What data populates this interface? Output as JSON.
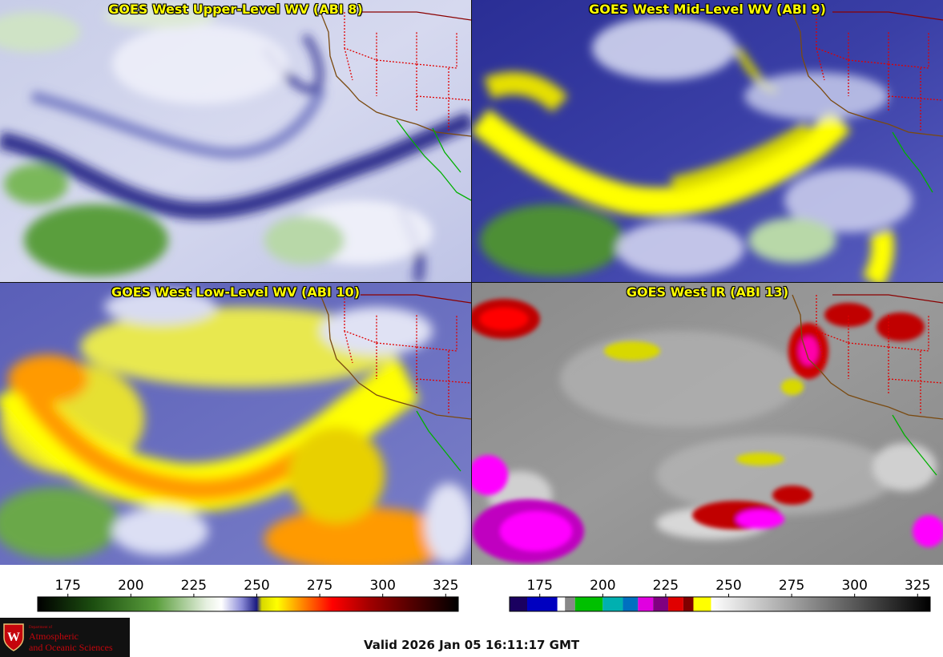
{
  "panels": [
    {
      "id": "ul",
      "title": "GOES West Upper-Level WV (ABI 8)"
    },
    {
      "id": "ml",
      "title": "GOES West Mid-Level WV (ABI 9)"
    },
    {
      "id": "ll",
      "title": "GOES West Low-Level WV (ABI 10)"
    },
    {
      "id": "ir",
      "title": "GOES West IR (ABI 13)"
    }
  ],
  "colorbars": {
    "wv": {
      "ticks": [
        "175",
        "200",
        "225",
        "250",
        "275",
        "300",
        "325"
      ],
      "tick_values": [
        175,
        200,
        225,
        250,
        275,
        300,
        325
      ],
      "range": [
        163,
        330
      ],
      "stops": [
        {
          "v": 163,
          "c": "#000000"
        },
        {
          "v": 185,
          "c": "#1c4e10"
        },
        {
          "v": 210,
          "c": "#5a9e3c"
        },
        {
          "v": 230,
          "c": "#e6f0e0"
        },
        {
          "v": 236,
          "c": "#ffffff"
        },
        {
          "v": 244,
          "c": "#8c8cd8"
        },
        {
          "v": 250,
          "c": "#1a1a80"
        },
        {
          "v": 252,
          "c": "#d8d800"
        },
        {
          "v": 258,
          "c": "#ffff00"
        },
        {
          "v": 268,
          "c": "#ff8800"
        },
        {
          "v": 280,
          "c": "#ff0000"
        },
        {
          "v": 295,
          "c": "#a00000"
        },
        {
          "v": 312,
          "c": "#500000"
        },
        {
          "v": 330,
          "c": "#000000"
        }
      ]
    },
    "ir": {
      "ticks": [
        "175",
        "200",
        "225",
        "250",
        "275",
        "300",
        "325"
      ],
      "tick_values": [
        175,
        200,
        225,
        250,
        275,
        300,
        325
      ],
      "range": [
        163,
        330
      ],
      "segments": [
        {
          "from": 163,
          "to": 170,
          "c": "#1a0060"
        },
        {
          "from": 170,
          "to": 182,
          "c": "#0000c0"
        },
        {
          "from": 182,
          "to": 185,
          "c": "#ffffff"
        },
        {
          "from": 185,
          "to": 189,
          "c": "#888888"
        },
        {
          "from": 189,
          "to": 200,
          "c": "#00c000"
        },
        {
          "from": 200,
          "to": 208,
          "c": "#00b0b0"
        },
        {
          "from": 208,
          "to": 214,
          "c": "#0070c0"
        },
        {
          "from": 214,
          "to": 220,
          "c": "#e000e0"
        },
        {
          "from": 220,
          "to": 226,
          "c": "#800080"
        },
        {
          "from": 226,
          "to": 232,
          "c": "#e00000"
        },
        {
          "from": 232,
          "to": 236,
          "c": "#800000"
        },
        {
          "from": 236,
          "to": 243,
          "c": "#ffff00"
        }
      ],
      "gray_from": 243,
      "gray_stops": [
        {
          "v": 243,
          "c": "#ffffff"
        },
        {
          "v": 330,
          "c": "#000000"
        }
      ]
    }
  },
  "logo": {
    "department": "Department of",
    "line1": "Atmospheric",
    "line2": "and Oceanic Sciences",
    "shield_letter": "W"
  },
  "valid_text": "Valid 2026 Jan 05 16:11:17 GMT"
}
